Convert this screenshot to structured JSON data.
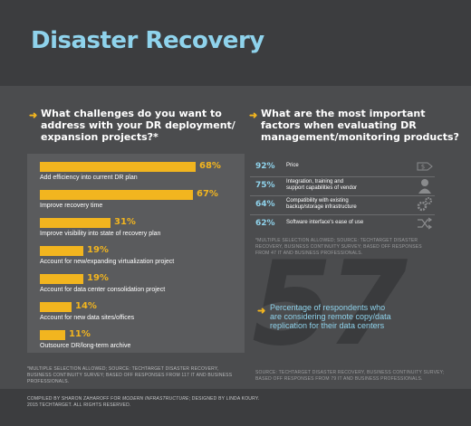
{
  "title": "Disaster Recovery",
  "left": {
    "question": [
      "What challenges do you want to",
      "address with your DR deployment/",
      "expansion projects?*"
    ],
    "footnote": [
      "*MULTIPLE SELECTION ALLOWED; SOURCE: TECHTARGET DISASTER RECOVERY,",
      "BUSINESS CONTINUITY SURVEY; BASED OFF RESPONSES FROM 117 IT AND BUSINESS",
      "PROFESSIONALS."
    ]
  },
  "right": {
    "question": [
      "What are the most important",
      "factors when evaluating DR",
      "management/monitoring products?"
    ],
    "rows": [
      {
        "pct": "92%",
        "label": [
          "Price"
        ],
        "icon": "price-tag-icon"
      },
      {
        "pct": "75%",
        "label": [
          "Integration, training and",
          "support capabilities of vendor"
        ],
        "icon": "person-icon"
      },
      {
        "pct": "64%",
        "label": [
          "Compatibility with existing",
          "backup/storage infrastructure"
        ],
        "icon": "gears-icon"
      },
      {
        "pct": "62%",
        "label": [
          "Software interface's ease of use"
        ],
        "icon": "shuffle-icon"
      }
    ],
    "footnote": [
      "*MULTIPLE SELECTION ALLOWED; SOURCE: TECHTARGET DISASTER",
      "RECOVERY, BUSINESS CONTINUITY SURVEY; BASED OFF RESPONSES",
      "FROM 47 IT AND BUSINESS PROFESSIONALS."
    ],
    "big_number": "57",
    "stat_text": [
      "Percentage of respondents who",
      "are considering remote copy/data",
      "replication for their data centers"
    ],
    "stat_source": [
      "SOURCE: TECHTARGET DISASTER RECOVERY, BUSINESS CONTINUITY SURVEY;",
      "BASED OFF RESPONSES FROM 79 IT AND BUSINESS PROFESSIONALS."
    ]
  },
  "footer": {
    "credit_prefix": "COMPILED BY SHARON ZAHAROFF FOR ",
    "credit_publication": "MODERN INFRASTRUCTURE",
    "credit_suffix": "; DESIGNED BY LINDA KOURY.",
    "copyright": "2015 TECHTARGET. ALL RIGHTS RESERVED."
  },
  "colors": {
    "accent": "#f2b51f",
    "title": "#8fd3ec",
    "background": "#4b4c4e",
    "header": "#3c3d3f"
  },
  "chart_data": {
    "type": "bar",
    "orientation": "horizontal",
    "categories": [
      "Add efficiency into current DR plan",
      "Improve recovery time",
      "Improve visibility into state of recovery plan",
      "Account for new/expanding virtualization project",
      "Account for data center consolidation project",
      "Account for new data sites/offices",
      "Outsource DR/long-term archive"
    ],
    "values": [
      68,
      67,
      31,
      19,
      19,
      14,
      11
    ],
    "value_labels": [
      "68%",
      "67%",
      "31%",
      "19%",
      "19%",
      "14%",
      "11%"
    ],
    "unit": "%",
    "xlim": [
      0,
      68
    ]
  }
}
